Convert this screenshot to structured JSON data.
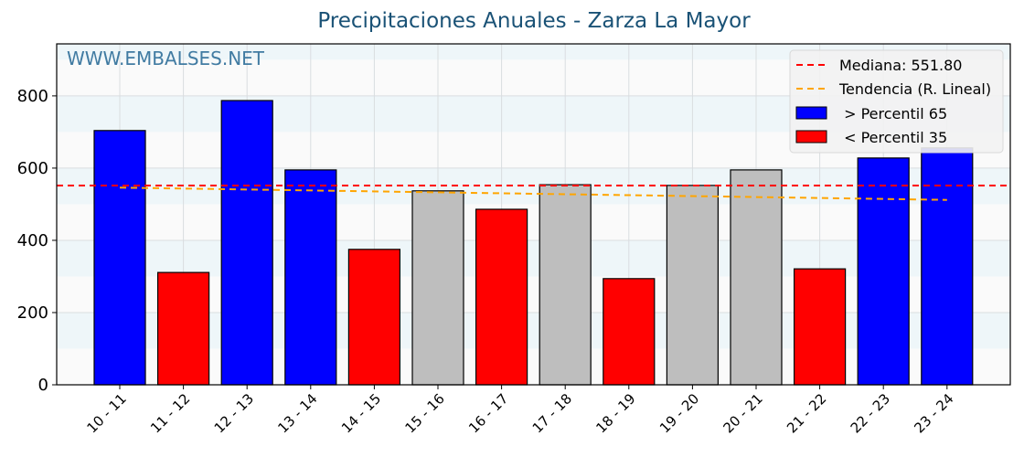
{
  "title": "Precipitaciones Anuales - Zarza La Mayor",
  "watermark": "WWW.EMBALSES.NET",
  "legend": {
    "median_label": "Mediana: 551.80",
    "trend_label": "Tendencia (R. Lineal)",
    "high_label": " > Percentil 65",
    "low_label": " < Percentil 35"
  },
  "colors": {
    "high": "#0000ff",
    "low": "#ff0000",
    "mid": "#bebebe",
    "median_line": "#ff0000",
    "trend_line": "#ffa500",
    "title": "#1a5276",
    "stripe_a": "#eef6f9",
    "stripe_b": "#fafafa"
  },
  "chart_data": {
    "type": "bar",
    "title": "Precipitaciones Anuales - Zarza La Mayor",
    "xlabel": "",
    "ylabel": "",
    "ylim": [
      0,
      944
    ],
    "yticks": [
      0,
      200,
      400,
      600,
      800
    ],
    "grid": true,
    "legend_position": "upper right",
    "categories": [
      "10 - 11",
      "11 - 12",
      "12 - 13",
      "13 - 14",
      "14 - 15",
      "15 - 16",
      "16 - 17",
      "17 - 18",
      "18 - 19",
      "19 - 20",
      "20 - 21",
      "21 - 22",
      "22 - 23",
      "23 - 24"
    ],
    "values": [
      704,
      311,
      787,
      595,
      375,
      537,
      486,
      554,
      294,
      552,
      595,
      321,
      628,
      656
    ],
    "classes": [
      "high",
      "low",
      "high",
      "high",
      "low",
      "mid",
      "low",
      "mid",
      "low",
      "mid",
      "mid",
      "low",
      "high",
      "high"
    ],
    "median": 551.8,
    "trend": {
      "start": 546,
      "end": 512
    }
  }
}
